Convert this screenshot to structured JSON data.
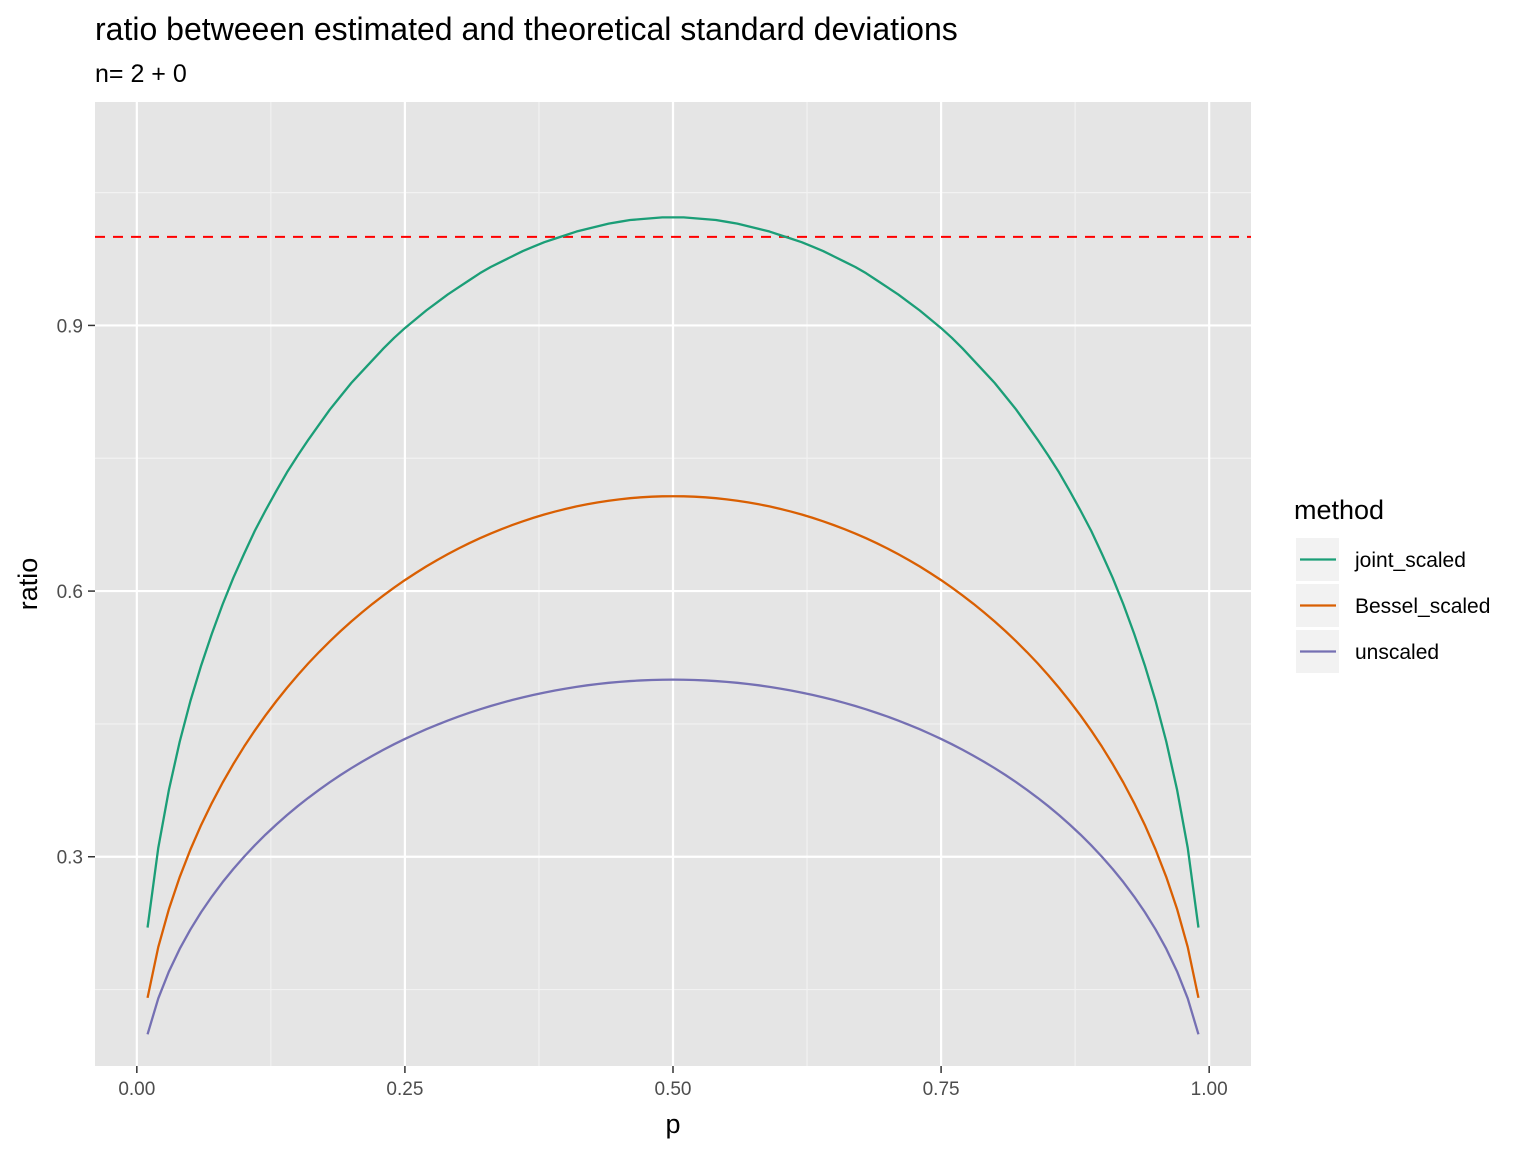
{
  "chart_data": {
    "type": "line",
    "title": "ratio betweeen estimated and theoretical standard deviations",
    "subtitle": "n= 2 + 0",
    "xlabel": "p",
    "ylabel": "ratio",
    "xlim": [
      -0.039,
      1.039
    ],
    "ylim": [
      0.0637,
      1.1523
    ],
    "x_ticks": [
      {
        "value": 0.0,
        "label": "0.00"
      },
      {
        "value": 0.25,
        "label": "0.25"
      },
      {
        "value": 0.5,
        "label": "0.50"
      },
      {
        "value": 0.75,
        "label": "0.75"
      },
      {
        "value": 1.0,
        "label": "1.00"
      }
    ],
    "y_ticks": [
      {
        "value": 0.3,
        "label": "0.3"
      },
      {
        "value": 0.6,
        "label": "0.6"
      },
      {
        "value": 0.9,
        "label": "0.9"
      }
    ],
    "grid": true,
    "reference_line": {
      "y": 1.0,
      "style": "dashed",
      "color": "#ff0000"
    },
    "legend": {
      "title": "method",
      "position": "right"
    },
    "x": [
      0.01,
      0.02,
      0.03,
      0.04,
      0.05,
      0.06,
      0.07,
      0.08,
      0.09,
      0.1,
      0.11,
      0.12,
      0.13,
      0.14,
      0.15,
      0.16,
      0.17,
      0.18,
      0.19,
      0.2,
      0.21,
      0.22,
      0.23,
      0.24,
      0.25,
      0.26,
      0.27,
      0.28,
      0.29,
      0.3,
      0.31,
      0.32,
      0.33,
      0.34,
      0.35,
      0.36,
      0.37,
      0.38,
      0.39,
      0.4,
      0.41,
      0.42,
      0.43,
      0.44,
      0.45,
      0.46,
      0.47,
      0.48,
      0.49,
      0.5,
      0.51,
      0.52,
      0.53,
      0.54,
      0.55,
      0.56,
      0.57,
      0.58,
      0.59,
      0.6,
      0.61,
      0.62,
      0.63,
      0.64,
      0.65,
      0.66,
      0.67,
      0.68,
      0.69,
      0.7,
      0.71,
      0.72,
      0.73,
      0.74,
      0.75,
      0.76,
      0.77,
      0.78,
      0.79,
      0.8,
      0.81,
      0.82,
      0.83,
      0.84,
      0.85,
      0.86,
      0.87,
      0.88,
      0.89,
      0.9,
      0.91,
      0.92,
      0.93,
      0.94,
      0.95,
      0.96,
      0.97,
      0.98,
      0.99
    ],
    "series": [
      {
        "name": "joint_scaled",
        "color": "#1b9e77",
        "values": [
          0.22,
          0.31,
          0.376,
          0.43,
          0.476,
          0.516,
          0.552,
          0.585,
          0.615,
          0.642,
          0.668,
          0.691,
          0.713,
          0.734,
          0.753,
          0.771,
          0.788,
          0.805,
          0.82,
          0.835,
          0.848,
          0.861,
          0.874,
          0.886,
          0.897,
          0.907,
          0.917,
          0.926,
          0.935,
          0.943,
          0.951,
          0.959,
          0.966,
          0.972,
          0.978,
          0.984,
          0.989,
          0.994,
          0.998,
          1.002,
          1.006,
          1.009,
          1.012,
          1.015,
          1.017,
          1.019,
          1.02,
          1.021,
          1.022,
          1.022,
          1.022,
          1.021,
          1.02,
          1.019,
          1.017,
          1.015,
          1.012,
          1.009,
          1.006,
          1.002,
          0.998,
          0.994,
          0.989,
          0.984,
          0.978,
          0.972,
          0.966,
          0.959,
          0.951,
          0.943,
          0.935,
          0.926,
          0.917,
          0.907,
          0.897,
          0.886,
          0.874,
          0.861,
          0.848,
          0.835,
          0.82,
          0.805,
          0.788,
          0.771,
          0.753,
          0.734,
          0.713,
          0.691,
          0.668,
          0.642,
          0.615,
          0.585,
          0.552,
          0.516,
          0.476,
          0.43,
          0.376,
          0.31,
          0.22
        ]
      },
      {
        "name": "Bessel_scaled",
        "color": "#d95f02",
        "values": [
          0.1407,
          0.198,
          0.2412,
          0.2771,
          0.3082,
          0.3359,
          0.3608,
          0.3837,
          0.4047,
          0.4243,
          0.4425,
          0.4596,
          0.4756,
          0.4907,
          0.505,
          0.5185,
          0.5312,
          0.5433,
          0.5548,
          0.5657,
          0.576,
          0.5858,
          0.5951,
          0.604,
          0.6124,
          0.6203,
          0.6279,
          0.635,
          0.6417,
          0.6481,
          0.6541,
          0.6597,
          0.665,
          0.6699,
          0.6745,
          0.6788,
          0.6828,
          0.6865,
          0.6898,
          0.6928,
          0.6956,
          0.698,
          0.7002,
          0.702,
          0.7036,
          0.7049,
          0.7059,
          0.7066,
          0.707,
          0.7071,
          0.707,
          0.7066,
          0.7059,
          0.7049,
          0.7036,
          0.702,
          0.7002,
          0.698,
          0.6956,
          0.6928,
          0.6898,
          0.6865,
          0.6828,
          0.6788,
          0.6745,
          0.6699,
          0.665,
          0.6597,
          0.6541,
          0.6481,
          0.6417,
          0.635,
          0.6279,
          0.6203,
          0.6124,
          0.604,
          0.5951,
          0.5858,
          0.576,
          0.5657,
          0.5548,
          0.5433,
          0.5312,
          0.5185,
          0.505,
          0.4907,
          0.4756,
          0.4596,
          0.4425,
          0.4243,
          0.4047,
          0.3837,
          0.3608,
          0.3359,
          0.3082,
          0.2771,
          0.2412,
          0.198,
          0.1407
        ]
      },
      {
        "name": "unscaled",
        "color": "#7570b3",
        "values": [
          0.0995,
          0.14,
          0.1706,
          0.196,
          0.2179,
          0.2375,
          0.2551,
          0.2713,
          0.2862,
          0.3,
          0.3129,
          0.325,
          0.3363,
          0.347,
          0.3571,
          0.3666,
          0.3756,
          0.3842,
          0.3923,
          0.4,
          0.4073,
          0.4142,
          0.4208,
          0.4271,
          0.433,
          0.4386,
          0.444,
          0.449,
          0.4538,
          0.4583,
          0.4625,
          0.4665,
          0.4702,
          0.4737,
          0.477,
          0.48,
          0.4828,
          0.4854,
          0.4877,
          0.4899,
          0.4918,
          0.4936,
          0.4951,
          0.4964,
          0.4975,
          0.4984,
          0.4991,
          0.4996,
          0.4999,
          0.5,
          0.4999,
          0.4996,
          0.4991,
          0.4984,
          0.4975,
          0.4964,
          0.4951,
          0.4936,
          0.4918,
          0.4899,
          0.4877,
          0.4854,
          0.4828,
          0.48,
          0.477,
          0.4737,
          0.4702,
          0.4665,
          0.4625,
          0.4583,
          0.4538,
          0.449,
          0.444,
          0.4386,
          0.433,
          0.4271,
          0.4208,
          0.4142,
          0.4073,
          0.4,
          0.3923,
          0.3842,
          0.3756,
          0.3666,
          0.3571,
          0.347,
          0.3363,
          0.325,
          0.3129,
          0.3,
          0.2862,
          0.2713,
          0.2551,
          0.2375,
          0.2179,
          0.196,
          0.1706,
          0.14,
          0.0995
        ]
      }
    ]
  }
}
